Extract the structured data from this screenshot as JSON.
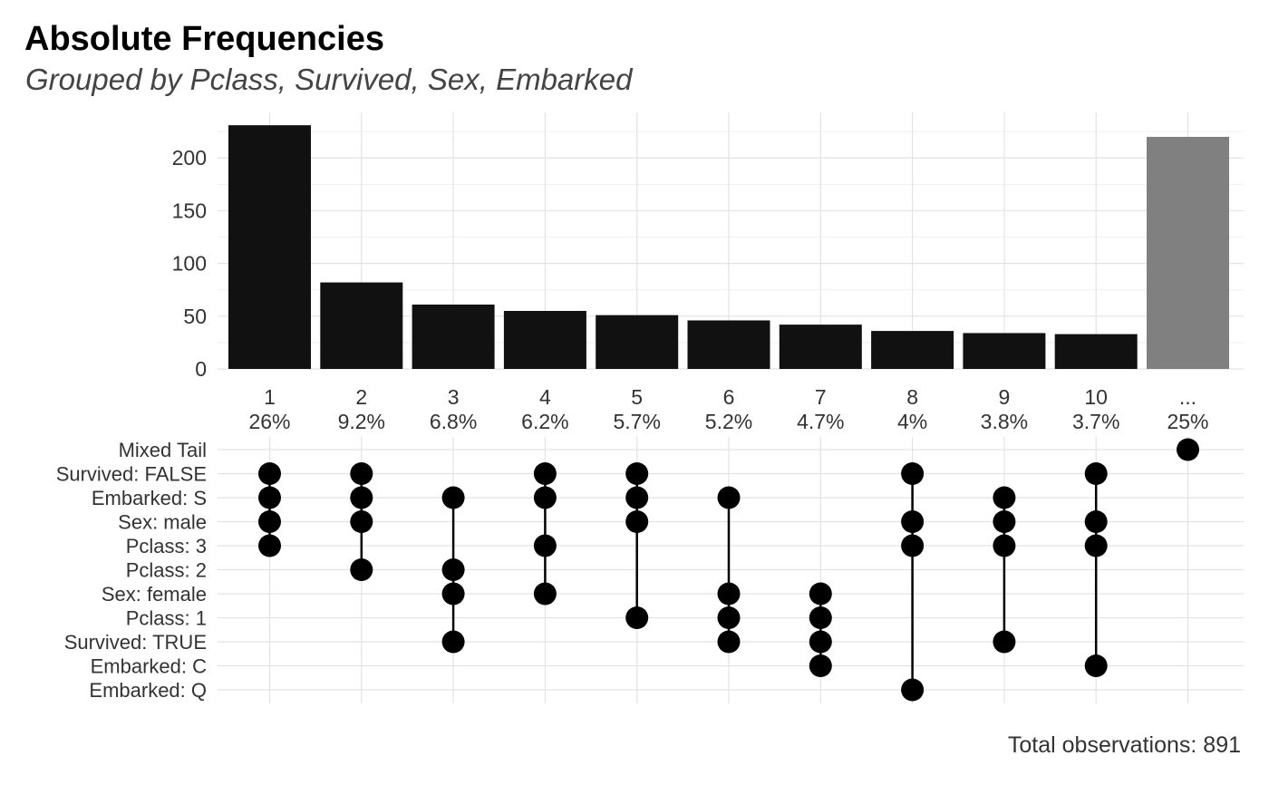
{
  "chart_data": {
    "type": "bar",
    "title": "Absolute Frequencies",
    "subtitle": "Grouped by Pclass, Survived, Sex, Embarked",
    "caption": "Total observations: 891",
    "ylim": [
      0,
      232
    ],
    "y_ticks": [
      "0",
      "50",
      "100",
      "150",
      "200"
    ],
    "grid": true,
    "categories": [
      "1",
      "2",
      "3",
      "4",
      "5",
      "6",
      "7",
      "8",
      "9",
      "10",
      "..."
    ],
    "percent_labels": [
      "26%",
      "9.2%",
      "6.8%",
      "6.2%",
      "5.7%",
      "5.2%",
      "4.7%",
      "4%",
      "3.8%",
      "3.7%",
      "25%"
    ],
    "values": [
      231,
      82,
      61,
      55,
      51,
      46,
      42,
      36,
      34,
      33,
      220
    ],
    "tail_bar_index": 10,
    "colors": {
      "bar": "#111111",
      "tail_bar": "#808080",
      "grid": "#e3e3e3",
      "dot": "#000000",
      "text": "#333333"
    },
    "matrix_rows": [
      "Mixed Tail",
      "Survived: FALSE",
      "Embarked: S",
      "Sex: male",
      "Pclass: 3",
      "Pclass: 2",
      "Sex: female",
      "Pclass: 1",
      "Survived: TRUE",
      "Embarked: C",
      "Embarked: Q"
    ],
    "combinations": [
      [
        "Survived: FALSE",
        "Embarked: S",
        "Sex: male",
        "Pclass: 3"
      ],
      [
        "Survived: FALSE",
        "Embarked: S",
        "Sex: male",
        "Pclass: 2"
      ],
      [
        "Embarked: S",
        "Pclass: 2",
        "Sex: female",
        "Survived: TRUE"
      ],
      [
        "Survived: FALSE",
        "Embarked: S",
        "Pclass: 3",
        "Sex: female"
      ],
      [
        "Survived: FALSE",
        "Embarked: S",
        "Sex: male",
        "Pclass: 1"
      ],
      [
        "Embarked: S",
        "Sex: female",
        "Pclass: 1",
        "Survived: TRUE"
      ],
      [
        "Sex: female",
        "Pclass: 1",
        "Survived: TRUE",
        "Embarked: C"
      ],
      [
        "Survived: FALSE",
        "Sex: male",
        "Pclass: 3",
        "Embarked: Q"
      ],
      [
        "Embarked: S",
        "Sex: male",
        "Pclass: 3",
        "Survived: TRUE"
      ],
      [
        "Survived: FALSE",
        "Sex: male",
        "Pclass: 3",
        "Embarked: C"
      ],
      [
        "Mixed Tail"
      ]
    ]
  }
}
